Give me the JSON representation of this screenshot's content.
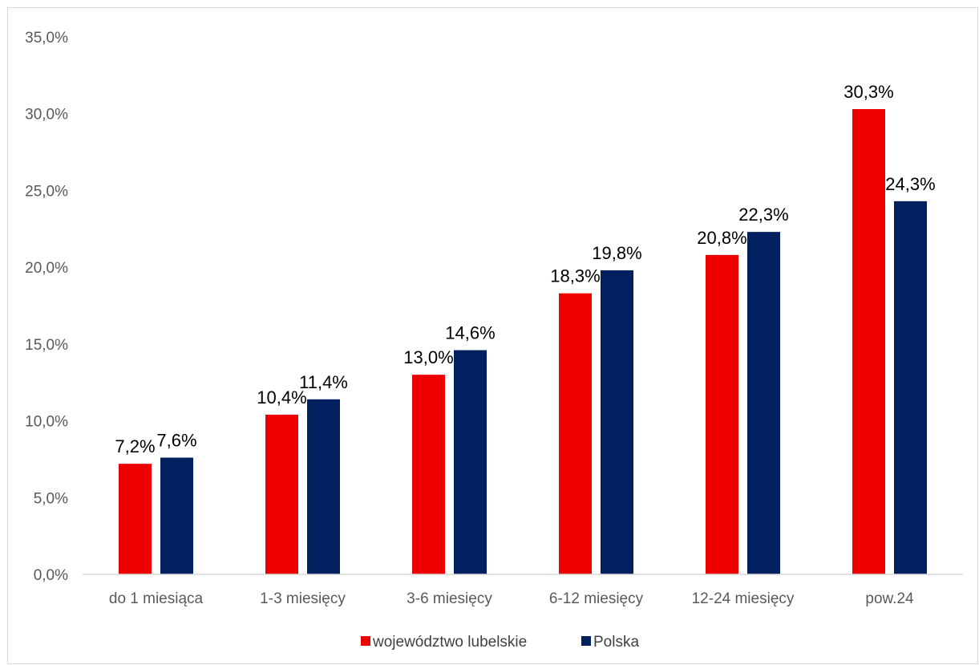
{
  "chart_data": {
    "type": "bar",
    "title": "",
    "xlabel": "",
    "ylabel": "",
    "categories": [
      "do 1 miesiąca",
      "1-3 miesięcy",
      "3-6 miesięcy",
      "6-12 miesięcy",
      "12-24 miesięcy",
      "pow.24"
    ],
    "series": [
      {
        "name": "województwo lubelskie",
        "color": "#ee0000",
        "values": [
          7.2,
          10.4,
          13.0,
          18.3,
          20.8,
          30.3
        ],
        "labels": [
          "7,2%",
          "10,4%",
          "13,0%",
          "18,3%",
          "20,8%",
          "30,3%"
        ]
      },
      {
        "name": "Polska",
        "color": "#002060",
        "values": [
          7.6,
          11.4,
          14.6,
          19.8,
          22.3,
          24.3
        ],
        "labels": [
          "7,6%",
          "11,4%",
          "14,6%",
          "19,8%",
          "22,3%",
          "24,3%"
        ]
      }
    ],
    "ylim": [
      0,
      35
    ],
    "yticks": [
      0,
      5,
      10,
      15,
      20,
      25,
      30,
      35
    ],
    "ytick_labels": [
      "0,0%",
      "5,0%",
      "10,0%",
      "15,0%",
      "20,0%",
      "25,0%",
      "30,0%",
      "35,0%"
    ],
    "grid": false,
    "legend": "bottom"
  }
}
